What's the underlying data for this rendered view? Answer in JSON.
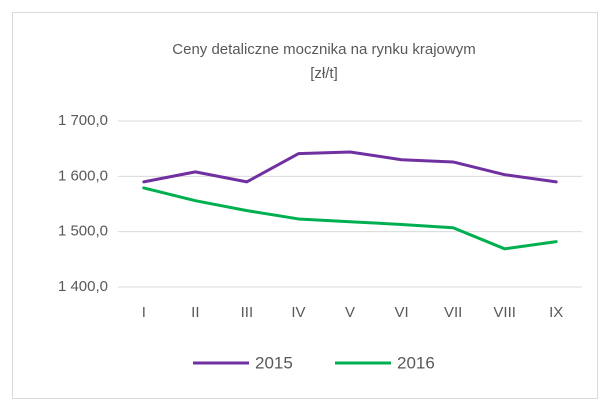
{
  "chart_data": {
    "type": "line",
    "title": "Ceny detaliczne mocznika na rynku krajowym",
    "subtitle": "[zł/t]",
    "categories": [
      "I",
      "II",
      "III",
      "IV",
      "V",
      "VI",
      "VII",
      "VIII",
      "IX"
    ],
    "series": [
      {
        "name": "2015",
        "color": "#7030a0",
        "values": [
          1590,
          1608,
          1590,
          1641,
          1644,
          1630,
          1626,
          1603,
          1590
        ]
      },
      {
        "name": "2016",
        "color": "#00b050",
        "values": [
          1579,
          1556,
          1538,
          1523,
          1518,
          1513,
          1507,
          1469,
          1482
        ]
      }
    ],
    "ylim": [
      1400,
      1700
    ],
    "yticks": [
      {
        "value": 1400,
        "label": "1 400,0"
      },
      {
        "value": 1500,
        "label": "1 500,0"
      },
      {
        "value": 1600,
        "label": "1 600,0"
      },
      {
        "value": 1700,
        "label": "1 700,0"
      }
    ],
    "grid": true,
    "legend": "bottom"
  }
}
